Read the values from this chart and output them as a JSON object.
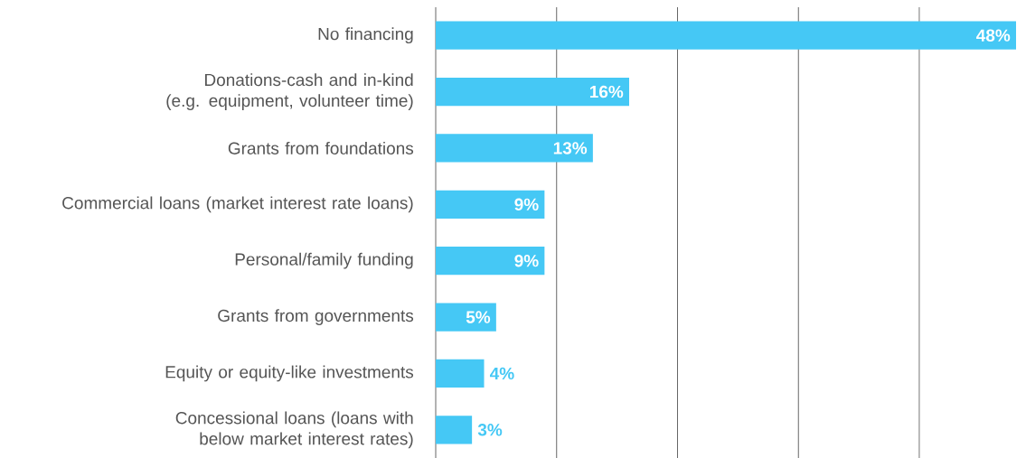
{
  "chart_data": {
    "type": "bar",
    "orientation": "horizontal",
    "categories": [
      "No financing",
      "Donations-cash and in-kind (e.g. equipment, volunteer time)",
      "Grants from foundations",
      "Commercial loans (market interest rate loans)",
      "Personal/family funding",
      "Grants from governments",
      "Equity or equity-like investments",
      "Concessional loans (loans with below market interest rates)"
    ],
    "values": [
      48,
      16,
      13,
      9,
      9,
      5,
      4,
      3
    ],
    "value_labels": [
      "48%",
      "16%",
      "13%",
      "9%",
      "9%",
      "5%",
      "4%",
      "3%"
    ],
    "color": "#45c8f5",
    "xlim": [
      0,
      48
    ],
    "xticks": [
      {
        "value": 0,
        "label": null
      },
      {
        "value": 10,
        "label": null
      },
      {
        "value": 20,
        "label": null
      },
      {
        "value": 30,
        "label": null
      },
      {
        "value": 40,
        "label": null
      }
    ],
    "grid": "x",
    "tick_labels": "y"
  }
}
